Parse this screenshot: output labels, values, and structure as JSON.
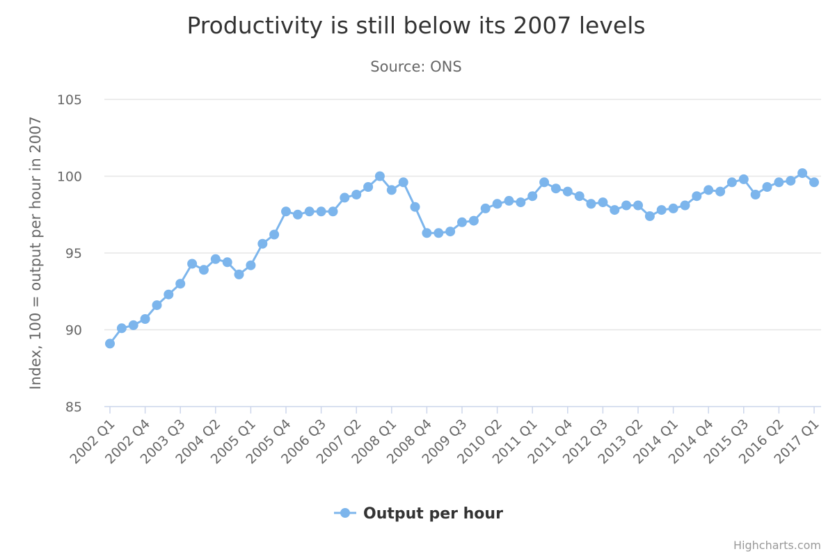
{
  "chart_data": {
    "type": "line",
    "title": "Productivity is still below its 2007 levels",
    "subtitle": "Source: ONS",
    "ylabel": "Index, 100 = output per hour in 2007",
    "xlabel": "",
    "ylim": [
      85,
      105
    ],
    "yticks": [
      85,
      90,
      95,
      100,
      105
    ],
    "grid": true,
    "legend_position": "bottom-center",
    "x": [
      "2002 Q1",
      "2002 Q2",
      "2002 Q3",
      "2002 Q4",
      "2003 Q1",
      "2003 Q2",
      "2003 Q3",
      "2003 Q4",
      "2004 Q1",
      "2004 Q2",
      "2004 Q3",
      "2004 Q4",
      "2005 Q1",
      "2005 Q2",
      "2005 Q3",
      "2005 Q4",
      "2006 Q1",
      "2006 Q2",
      "2006 Q3",
      "2006 Q4",
      "2007 Q1",
      "2007 Q2",
      "2007 Q3",
      "2007 Q4",
      "2008 Q1",
      "2008 Q2",
      "2008 Q3",
      "2008 Q4",
      "2009 Q1",
      "2009 Q2",
      "2009 Q3",
      "2009 Q4",
      "2010 Q1",
      "2010 Q2",
      "2010 Q3",
      "2010 Q4",
      "2011 Q1",
      "2011 Q2",
      "2011 Q3",
      "2011 Q4",
      "2012 Q1",
      "2012 Q2",
      "2012 Q3",
      "2012 Q4",
      "2013 Q1",
      "2013 Q2",
      "2013 Q3",
      "2013 Q4",
      "2014 Q1",
      "2014 Q2",
      "2014 Q3",
      "2014 Q4",
      "2015 Q1",
      "2015 Q2",
      "2015 Q3",
      "2015 Q4",
      "2016 Q1",
      "2016 Q2",
      "2016 Q3",
      "2016 Q4",
      "2017 Q1"
    ],
    "tick_labels": [
      "2002 Q1",
      "2002 Q4",
      "2003 Q3",
      "2004 Q2",
      "2005 Q1",
      "2005 Q4",
      "2006 Q3",
      "2007 Q2",
      "2008 Q1",
      "2008 Q4",
      "2009 Q3",
      "2010 Q2",
      "2011 Q1",
      "2011 Q4",
      "2012 Q3",
      "2013 Q2",
      "2014 Q1",
      "2014 Q4",
      "2015 Q3",
      "2016 Q2",
      "2017 Q1"
    ],
    "series": [
      {
        "name": "Output per hour",
        "color": "#7cb5ec",
        "values": [
          89.1,
          90.1,
          90.3,
          90.7,
          91.6,
          92.3,
          93.0,
          94.3,
          93.9,
          94.6,
          94.4,
          93.6,
          94.2,
          95.6,
          96.2,
          97.7,
          97.5,
          97.7,
          97.7,
          97.7,
          98.6,
          98.8,
          99.3,
          100.0,
          99.1,
          99.6,
          98.0,
          96.3,
          96.3,
          96.4,
          97.0,
          97.1,
          97.9,
          98.2,
          98.4,
          98.3,
          98.7,
          99.6,
          99.2,
          99.0,
          98.7,
          98.2,
          98.3,
          97.8,
          98.1,
          98.1,
          97.4,
          97.8,
          97.9,
          98.1,
          98.7,
          99.1,
          99.0,
          99.6,
          99.8,
          98.8,
          99.3,
          99.6,
          99.7,
          100.2,
          99.6
        ]
      }
    ]
  },
  "credits": "Highcharts.com"
}
